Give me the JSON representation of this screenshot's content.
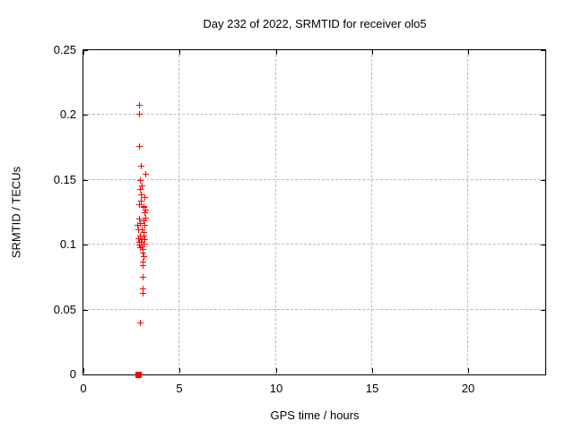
{
  "chart": {
    "title": "Day 232 of 2022, SRMTID for receiver olo5",
    "xlabel": "GPS time / hours",
    "ylabel": "SRMTID / TECUs"
  },
  "colors": {
    "marker": "#ff0000",
    "border": "#000000",
    "grid": "#b8b8b8",
    "background": "#ffffff"
  },
  "chart_data": {
    "type": "scatter",
    "title": "Day 232 of 2022, SRMTID for receiver olo5",
    "xlabel": "GPS time / hours",
    "ylabel": "SRMTID / TECUs",
    "xlim": [
      0,
      24
    ],
    "ylim": [
      0,
      0.25
    ],
    "x_ticks": [
      0,
      5,
      10,
      15,
      20
    ],
    "x_tick_labels": [
      "0",
      "5",
      "10",
      "15",
      "20"
    ],
    "y_ticks": [
      0,
      0.05,
      0.1,
      0.15,
      0.2,
      0.25
    ],
    "y_tick_labels": [
      "0",
      "0.05",
      "0.1",
      "0.15",
      "0.2",
      "0.25"
    ],
    "grid": true,
    "legend": false,
    "series": [
      {
        "marker": "plus",
        "color": "#ff0000",
        "points": [
          [
            2.9,
            0.208
          ],
          [
            2.9,
            0.201
          ],
          [
            2.9,
            0.176
          ],
          [
            3.0,
            0.161
          ],
          [
            3.2,
            0.155
          ],
          [
            2.95,
            0.15
          ],
          [
            3.05,
            0.146
          ],
          [
            2.95,
            0.143
          ],
          [
            3.0,
            0.139
          ],
          [
            3.15,
            0.137
          ],
          [
            3.0,
            0.134
          ],
          [
            2.9,
            0.131
          ],
          [
            3.1,
            0.13
          ],
          [
            3.1,
            0.129
          ],
          [
            3.2,
            0.127
          ],
          [
            3.17,
            0.125
          ],
          [
            3.22,
            0.121
          ],
          [
            2.9,
            0.12
          ],
          [
            3.1,
            0.119
          ],
          [
            2.95,
            0.117
          ],
          [
            2.8,
            0.115
          ],
          [
            3.15,
            0.115
          ],
          [
            2.85,
            0.112
          ],
          [
            3.05,
            0.112
          ],
          [
            3.1,
            0.11
          ],
          [
            2.95,
            0.107
          ],
          [
            3.13,
            0.107
          ],
          [
            2.85,
            0.105
          ],
          [
            3.01,
            0.104
          ],
          [
            3.17,
            0.104
          ],
          [
            2.9,
            0.102
          ],
          [
            3.0,
            0.102
          ],
          [
            3.13,
            0.101
          ],
          [
            2.87,
            0.1
          ],
          [
            3.03,
            0.099
          ],
          [
            2.95,
            0.098
          ],
          [
            3.07,
            0.097
          ],
          [
            3.07,
            0.094
          ],
          [
            3.1,
            0.091
          ],
          [
            3.07,
            0.087
          ],
          [
            3.06,
            0.084
          ],
          [
            3.06,
            0.075
          ],
          [
            3.06,
            0.066
          ],
          [
            3.06,
            0.063
          ],
          [
            2.95,
            0.04
          ]
        ]
      },
      {
        "marker": "square",
        "color": "#ff0000",
        "points": [
          [
            2.83,
            0.0
          ]
        ]
      }
    ]
  }
}
